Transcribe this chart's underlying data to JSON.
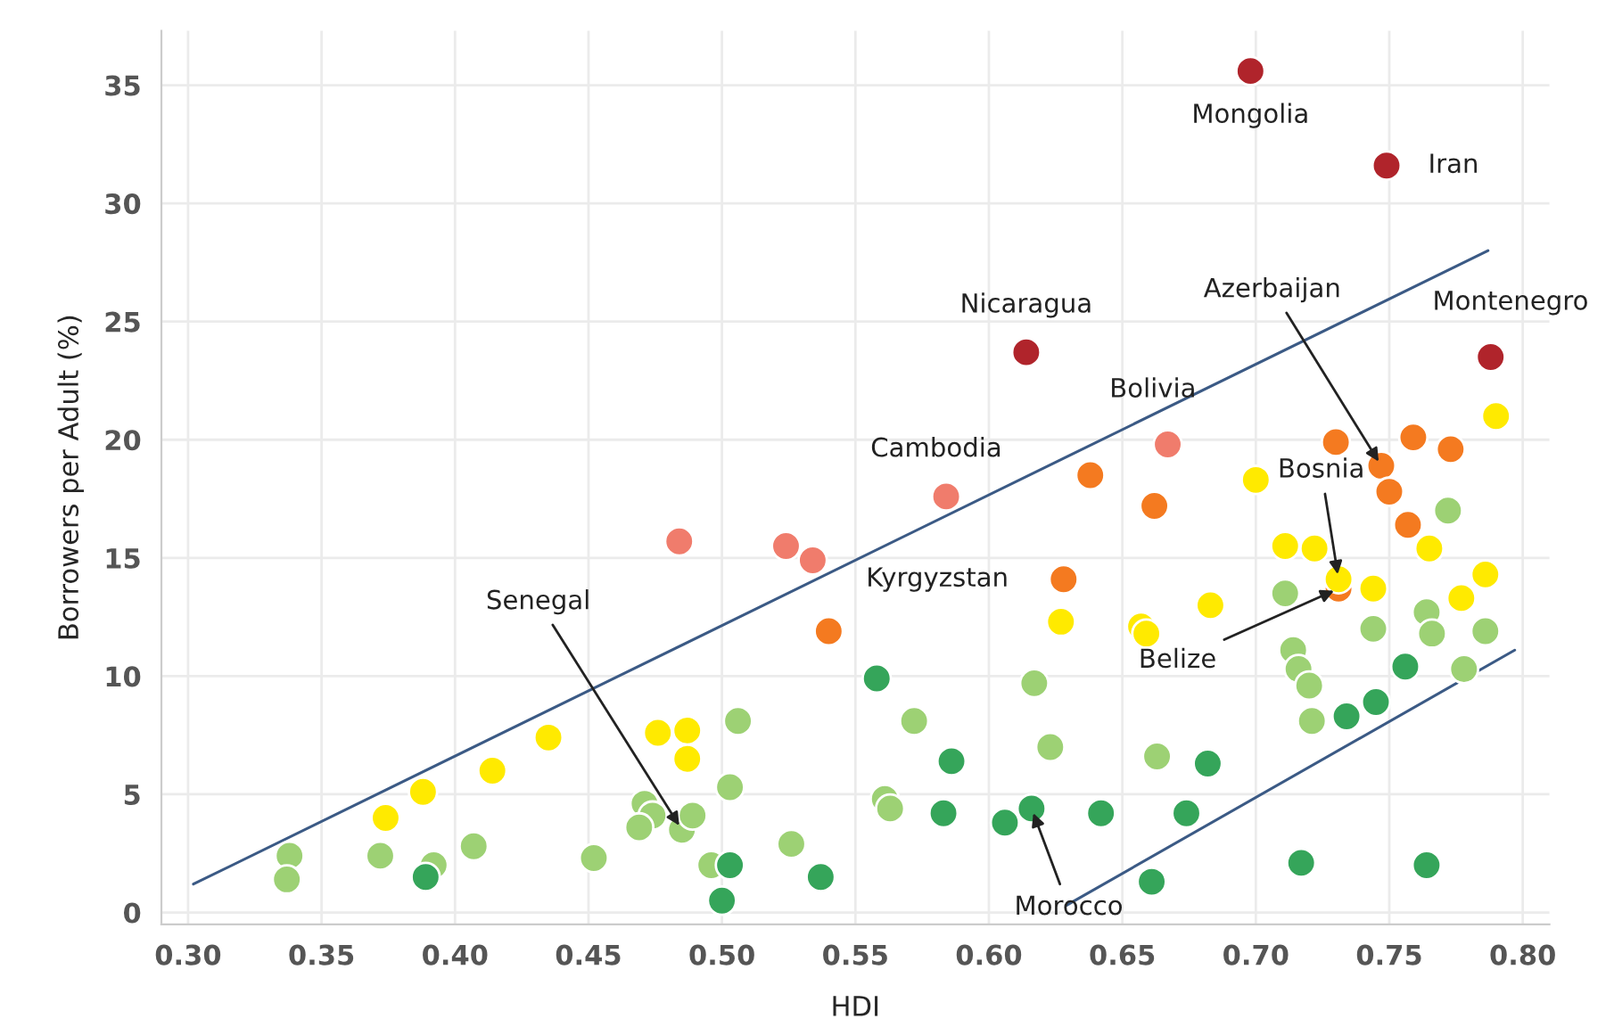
{
  "chart_data": {
    "type": "scatter",
    "xlabel": "HDI",
    "ylabel": "Borrowers per Adult (%)",
    "xlim": [
      0.29,
      0.81
    ],
    "ylim": [
      -0.5,
      37.3
    ],
    "xticks": [
      {
        "value": 0.3,
        "label": "0.30"
      },
      {
        "value": 0.35,
        "label": "0.35"
      },
      {
        "value": 0.4,
        "label": "0.40"
      },
      {
        "value": 0.45,
        "label": "0.45"
      },
      {
        "value": 0.5,
        "label": "0.50"
      },
      {
        "value": 0.55,
        "label": "0.55"
      },
      {
        "value": 0.6,
        "label": "0.60"
      },
      {
        "value": 0.65,
        "label": "0.65"
      },
      {
        "value": 0.7,
        "label": "0.70"
      },
      {
        "value": 0.75,
        "label": "0.75"
      },
      {
        "value": 0.8,
        "label": "0.80"
      }
    ],
    "yticks": [
      0,
      5,
      10,
      15,
      20,
      25,
      30,
      35
    ],
    "grid": true,
    "marker": "circle",
    "series": [
      {
        "color": "#b0242b",
        "x": [
          0.698,
          0.749,
          0.614,
          0.788
        ],
        "values": [
          35.6,
          31.6,
          23.7,
          23.5
        ]
      },
      {
        "color": "#f07c6c",
        "x": [
          0.584,
          0.667,
          0.484,
          0.524,
          0.534
        ],
        "values": [
          17.6,
          19.8,
          15.7,
          15.5,
          14.9
        ]
      },
      {
        "color": "#f47a20",
        "x": [
          0.638,
          0.662,
          0.628,
          0.54,
          0.73,
          0.747,
          0.759,
          0.773,
          0.75,
          0.757,
          0.731
        ],
        "values": [
          18.5,
          17.2,
          14.1,
          11.9,
          19.9,
          18.9,
          20.1,
          19.6,
          17.8,
          16.4,
          13.7
        ]
      },
      {
        "color": "#ffea00",
        "x": [
          0.79,
          0.7,
          0.711,
          0.722,
          0.765,
          0.731,
          0.744,
          0.786,
          0.777,
          0.683,
          0.627,
          0.657,
          0.659,
          0.374,
          0.388,
          0.414,
          0.435,
          0.476,
          0.487,
          0.487
        ],
        "values": [
          21.0,
          18.3,
          15.5,
          15.4,
          15.4,
          14.1,
          13.7,
          14.3,
          13.3,
          13.0,
          12.3,
          12.1,
          11.8,
          4.0,
          5.1,
          6.0,
          7.4,
          7.6,
          7.7,
          6.5
        ]
      },
      {
        "color": "#9dd174",
        "x": [
          0.772,
          0.711,
          0.764,
          0.744,
          0.766,
          0.786,
          0.714,
          0.716,
          0.72,
          0.721,
          0.778,
          0.617,
          0.572,
          0.623,
          0.663,
          0.561,
          0.563,
          0.506,
          0.503,
          0.471,
          0.474,
          0.485,
          0.469,
          0.489,
          0.338,
          0.337,
          0.372,
          0.392,
          0.407,
          0.452,
          0.496,
          0.526
        ],
        "values": [
          17.0,
          13.5,
          12.7,
          12.0,
          11.8,
          11.9,
          11.1,
          10.3,
          9.6,
          8.1,
          10.3,
          9.7,
          8.1,
          7.0,
          6.6,
          4.8,
          4.4,
          8.1,
          5.3,
          4.6,
          4.1,
          3.5,
          3.6,
          4.1,
          2.4,
          1.4,
          2.4,
          2.0,
          2.8,
          2.3,
          2.0,
          2.9
        ]
      },
      {
        "color": "#35a55a",
        "x": [
          0.558,
          0.586,
          0.583,
          0.606,
          0.616,
          0.642,
          0.674,
          0.682,
          0.661,
          0.717,
          0.764,
          0.734,
          0.745,
          0.756,
          0.389,
          0.503,
          0.5,
          0.537
        ],
        "values": [
          9.9,
          6.4,
          4.2,
          3.8,
          4.4,
          4.2,
          4.2,
          6.3,
          1.3,
          2.1,
          2.0,
          8.3,
          8.9,
          10.4,
          1.5,
          2.0,
          0.5,
          1.5
        ]
      },
      {
        "type": "line",
        "marker": "none",
        "color": "#3b5a85",
        "x": [
          0.302,
          0.787
        ],
        "values": [
          1.2,
          28.0
        ]
      },
      {
        "type": "line",
        "marker": "none",
        "color": "#3b5a85",
        "x": [
          0.629,
          0.797
        ],
        "values": [
          0.3,
          11.1
        ]
      }
    ],
    "annotations": [
      {
        "text": "Mongolia",
        "x": 0.698,
        "y": 35.6
      },
      {
        "text": "Iran",
        "x": 0.749,
        "y": 31.6
      },
      {
        "text": "Nicaragua",
        "x": 0.614,
        "y": 23.7
      },
      {
        "text": "Montenegro",
        "x": 0.788,
        "y": 23.5
      },
      {
        "text": "Cambodia",
        "x": 0.584,
        "y": 17.6
      },
      {
        "text": "Bolivia",
        "x": 0.667,
        "y": 19.8
      },
      {
        "text": "Kyrgyzstan",
        "x": 0.628,
        "y": 14.1
      },
      {
        "text": "Azerbaijan",
        "x": 0.747,
        "y": 18.9
      },
      {
        "text": "Bosnia",
        "x": 0.731,
        "y": 14.1
      },
      {
        "text": "Belize",
        "x": 0.731,
        "y": 13.7
      },
      {
        "text": "Morocco",
        "x": 0.616,
        "y": 4.4
      },
      {
        "text": "Senegal",
        "x": 0.485,
        "y": 3.5
      }
    ]
  }
}
